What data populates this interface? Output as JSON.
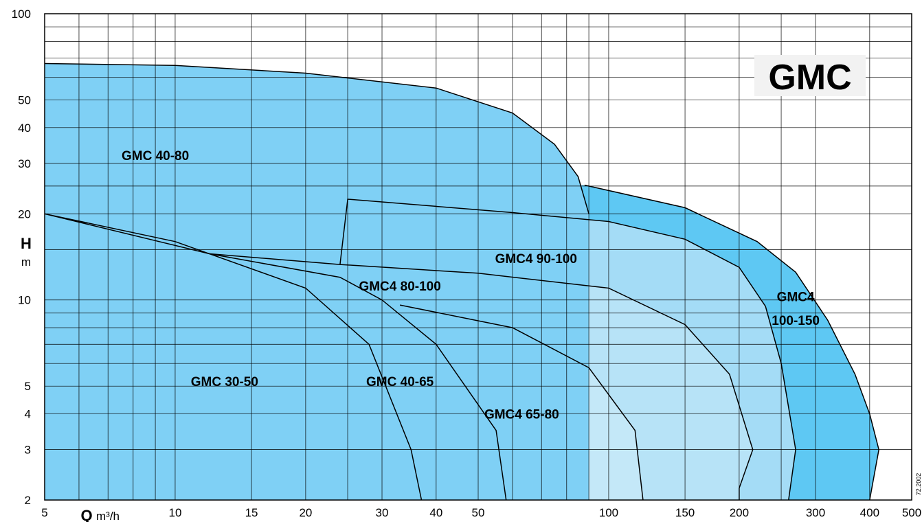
{
  "chart_data": {
    "type": "area",
    "title": "GMC",
    "code": "72.2002",
    "xscale": "log",
    "yscale": "log",
    "xlim": [
      5,
      500
    ],
    "ylim": [
      2,
      100
    ],
    "xlabel": {
      "symbol": "Q",
      "unit": "m³/h"
    },
    "ylabel": {
      "symbol": "H",
      "unit": "m"
    },
    "x_ticks": [
      5,
      10,
      15,
      20,
      30,
      40,
      50,
      100,
      150,
      200,
      300,
      400,
      500
    ],
    "y_ticks": [
      2,
      3,
      4,
      5,
      10,
      20,
      30,
      40,
      50,
      100
    ],
    "grid": true,
    "colors": {
      "grid": "#000000",
      "gmc4_100_150": "#5ec8f3",
      "gmc4_90_100": "#a4dcf6",
      "gmc4_80_100": "#b7e3f7",
      "gmc4_65_80": "#c4e8f8",
      "gmc_40_65": "#cdecf9",
      "gmc_30_50": "#d8f0fb",
      "gmc_40_80": "#7fd0f5",
      "badge": "#f2f2f2"
    },
    "series": [
      {
        "name": "GMC4 100-150",
        "key": "gmc4_100_150",
        "boundary": [
          [
            88,
            25.2
          ],
          [
            150,
            21
          ],
          [
            220,
            16
          ],
          [
            270,
            12.5
          ],
          [
            320,
            8.5
          ],
          [
            370,
            5.5
          ],
          [
            400,
            4
          ],
          [
            420,
            3
          ],
          [
            400,
            2
          ]
        ]
      },
      {
        "name": "GMC4 90-100",
        "key": "gmc4_90_100",
        "boundary": [
          [
            24,
            13.3
          ],
          [
            25,
            22.5
          ],
          [
            60,
            20.2
          ],
          [
            100,
            18.8
          ],
          [
            150,
            16.3
          ],
          [
            200,
            13
          ],
          [
            230,
            9.5
          ],
          [
            250,
            6
          ],
          [
            270,
            3
          ],
          [
            260,
            2
          ]
        ]
      },
      {
        "name": "GMC4 80-100",
        "key": "gmc4_80_100",
        "boundary": [
          [
            12,
            14.5
          ],
          [
            24,
            13.3
          ],
          [
            50,
            12.4
          ],
          [
            100,
            11
          ],
          [
            150,
            8.2
          ],
          [
            190,
            5.5
          ],
          [
            215,
            3
          ],
          [
            200,
            2.2
          ],
          [
            200,
            2
          ]
        ]
      },
      {
        "name": "GMC4 65-80",
        "key": "gmc4_65_80",
        "boundary": [
          [
            33,
            9.6
          ],
          [
            60,
            8
          ],
          [
            90,
            5.8
          ],
          [
            115,
            3.5
          ],
          [
            120,
            2
          ]
        ]
      },
      {
        "name": "GMC 40-65",
        "key": "gmc_40_65",
        "boundary": [
          [
            5,
            20
          ],
          [
            12,
            14.5
          ],
          [
            24,
            12
          ],
          [
            30,
            10
          ],
          [
            40,
            7
          ],
          [
            55,
            3.5
          ],
          [
            58,
            2
          ]
        ]
      },
      {
        "name": "GMC 30-50",
        "key": "gmc_30_50",
        "boundary": [
          [
            5,
            20
          ],
          [
            10,
            16
          ],
          [
            20,
            11
          ],
          [
            28,
            7
          ],
          [
            35,
            3
          ],
          [
            37,
            2
          ]
        ]
      },
      {
        "name": "GMC 40-80",
        "key": "gmc_40_80",
        "boundary": [
          [
            5,
            67
          ],
          [
            10,
            66
          ],
          [
            20,
            62
          ],
          [
            40,
            55
          ],
          [
            60,
            45
          ],
          [
            75,
            35
          ],
          [
            85,
            27
          ],
          [
            90,
            20
          ]
        ]
      }
    ],
    "annotations": [
      {
        "text": "GMC 40-80",
        "x": 9,
        "y": 32
      },
      {
        "text": "GMC4 90-100",
        "x": 68,
        "y": 14
      },
      {
        "text": "GMC4 80-100",
        "x": 33,
        "y": 11.2
      },
      {
        "text": "GMC4",
        "x": 270,
        "y": 10.3
      },
      {
        "text": "100-150",
        "x": 270,
        "y": 8.5
      },
      {
        "text": "GMC 30-50",
        "x": 13,
        "y": 5.2
      },
      {
        "text": "GMC 40-65",
        "x": 33,
        "y": 5.2
      },
      {
        "text": "GMC4 65-80",
        "x": 63,
        "y": 4
      }
    ]
  }
}
